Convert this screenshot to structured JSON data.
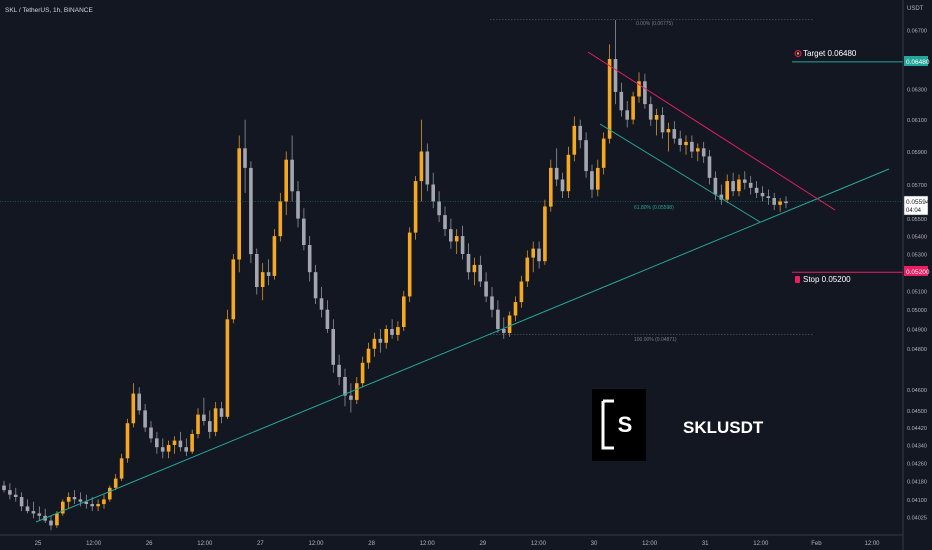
{
  "header": {
    "symbol_label": "SKL / TetherUS, 1h, BINANCE",
    "currency": "USDT"
  },
  "colors": {
    "background": "#131722",
    "bull": "#f7a823",
    "bear": "#a3a6af",
    "trendline": "#26a69a",
    "resistance": "#e91e63",
    "target": "#26a69a",
    "stop": "#e91e63",
    "axis_text": "#b2b5be",
    "axis_border": "#363a45"
  },
  "fib": {
    "top_label": "0.00% (0.06775)",
    "mid_label": "61.80% (0.05598)",
    "bottom_label": "100.00% (0.04871)",
    "top_price": 0.06775,
    "mid_price": 0.05598,
    "bottom_price": 0.04871
  },
  "target": {
    "label": "Target 0.06480",
    "price_tag": "0.06480",
    "price": 0.0648,
    "icon": "target-icon"
  },
  "stop": {
    "label": "Stop 0.05200",
    "price_tag": "0.05200",
    "price": 0.052,
    "icon": "stop-icon"
  },
  "current_price": {
    "price_tag": "0.05594",
    "countdown": "04:04",
    "price": 0.05594
  },
  "watermark": {
    "logo_letter": "S",
    "title": "SKLUSDT"
  },
  "chart_data": {
    "type": "candlestick",
    "y_axis": {
      "ticks": [
        "0.06700",
        "0.06500",
        "0.06300",
        "0.06100",
        "0.05900",
        "0.05700",
        "0.05500",
        "0.05400",
        "0.05300",
        "0.05100",
        "0.05000",
        "0.04900",
        "0.04800",
        "0.04600",
        "0.04500",
        "0.04420",
        "0.04340",
        "0.04260",
        "0.04180",
        "0.04100",
        "0.04025"
      ],
      "tick_values": [
        0.067,
        0.065,
        0.063,
        0.061,
        0.059,
        0.057,
        0.055,
        0.054,
        0.053,
        0.051,
        0.05,
        0.049,
        0.048,
        0.046,
        0.045,
        0.0442,
        0.0434,
        0.0426,
        0.0418,
        0.041,
        0.04025
      ],
      "scale": "log"
    },
    "x_axis": {
      "ticks": [
        "25",
        "12:00",
        "26",
        "12:00",
        "27",
        "12:00",
        "28",
        "12:00",
        "29",
        "12:00",
        "30",
        "12:00",
        "31",
        "12:00",
        "Feb",
        "12:00"
      ]
    },
    "ohlc": [
      [
        0.0416,
        0.0418,
        0.0413,
        0.0414
      ],
      [
        0.0414,
        0.0417,
        0.041,
        0.0412
      ],
      [
        0.0412,
        0.0415,
        0.0409,
        0.0411
      ],
      [
        0.0411,
        0.0413,
        0.0405,
        0.0407
      ],
      [
        0.0407,
        0.041,
        0.0404,
        0.0405
      ],
      [
        0.0405,
        0.0409,
        0.0402,
        0.0404
      ],
      [
        0.0404,
        0.0407,
        0.0401,
        0.0403
      ],
      [
        0.0403,
        0.0406,
        0.04,
        0.0401
      ],
      [
        0.0401,
        0.0403,
        0.0397,
        0.0399
      ],
      [
        0.0399,
        0.0405,
        0.0398,
        0.0404
      ],
      [
        0.0404,
        0.041,
        0.0403,
        0.0409
      ],
      [
        0.0409,
        0.0413,
        0.0406,
        0.0411
      ],
      [
        0.0411,
        0.0414,
        0.0408,
        0.041
      ],
      [
        0.041,
        0.0413,
        0.0407,
        0.0409
      ],
      [
        0.0409,
        0.0412,
        0.0406,
        0.0408
      ],
      [
        0.0408,
        0.0411,
        0.0405,
        0.0407
      ],
      [
        0.0407,
        0.041,
        0.0405,
        0.0408
      ],
      [
        0.0408,
        0.0412,
        0.0406,
        0.041
      ],
      [
        0.041,
        0.0416,
        0.0409,
        0.0415
      ],
      [
        0.0415,
        0.0421,
        0.0414,
        0.0419
      ],
      [
        0.0419,
        0.043,
        0.0418,
        0.0428
      ],
      [
        0.0428,
        0.0446,
        0.0426,
        0.0444
      ],
      [
        0.0444,
        0.0463,
        0.0442,
        0.0458
      ],
      [
        0.0458,
        0.0461,
        0.0448,
        0.045
      ],
      [
        0.045,
        0.0453,
        0.044,
        0.0442
      ],
      [
        0.0442,
        0.0445,
        0.0435,
        0.0437
      ],
      [
        0.0437,
        0.044,
        0.043,
        0.0433
      ],
      [
        0.0433,
        0.0437,
        0.0428,
        0.0431
      ],
      [
        0.0431,
        0.0436,
        0.0428,
        0.0434
      ],
      [
        0.0434,
        0.0438,
        0.043,
        0.0436
      ],
      [
        0.0436,
        0.044,
        0.0431,
        0.0433
      ],
      [
        0.0433,
        0.0437,
        0.0429,
        0.0431
      ],
      [
        0.0431,
        0.0441,
        0.043,
        0.0439
      ],
      [
        0.0439,
        0.0451,
        0.0437,
        0.0448
      ],
      [
        0.0448,
        0.0456,
        0.0443,
        0.0445
      ],
      [
        0.0445,
        0.045,
        0.0437,
        0.044
      ],
      [
        0.044,
        0.0454,
        0.0438,
        0.0451
      ],
      [
        0.0451,
        0.0454,
        0.0444,
        0.0447
      ],
      [
        0.0447,
        0.05,
        0.0446,
        0.0495
      ],
      [
        0.0495,
        0.053,
        0.0493,
        0.0527
      ],
      [
        0.0527,
        0.06,
        0.052,
        0.0592
      ],
      [
        0.0592,
        0.061,
        0.0565,
        0.058
      ],
      [
        0.058,
        0.0584,
        0.0525,
        0.053
      ],
      [
        0.053,
        0.0533,
        0.0508,
        0.0512
      ],
      [
        0.0512,
        0.0525,
        0.0505,
        0.052
      ],
      [
        0.052,
        0.0527,
        0.0513,
        0.0518
      ],
      [
        0.0518,
        0.0544,
        0.0516,
        0.054
      ],
      [
        0.054,
        0.0565,
        0.0537,
        0.056
      ],
      [
        0.056,
        0.059,
        0.0552,
        0.0585
      ],
      [
        0.0585,
        0.06,
        0.056,
        0.0566
      ],
      [
        0.0566,
        0.0572,
        0.0545,
        0.055
      ],
      [
        0.055,
        0.0556,
        0.0532,
        0.0535
      ],
      [
        0.0535,
        0.054,
        0.0515,
        0.052
      ],
      [
        0.052,
        0.0524,
        0.0503,
        0.0506
      ],
      [
        0.0506,
        0.0512,
        0.0496,
        0.05
      ],
      [
        0.05,
        0.0505,
        0.0488,
        0.049
      ],
      [
        0.049,
        0.0495,
        0.0468,
        0.0472
      ],
      [
        0.0472,
        0.0477,
        0.0462,
        0.0466
      ],
      [
        0.0466,
        0.047,
        0.0452,
        0.0457
      ],
      [
        0.0457,
        0.0463,
        0.0449,
        0.0455
      ],
      [
        0.0455,
        0.0466,
        0.0453,
        0.0463
      ],
      [
        0.0463,
        0.0476,
        0.0461,
        0.0473
      ],
      [
        0.0473,
        0.0483,
        0.047,
        0.048
      ],
      [
        0.048,
        0.0488,
        0.0476,
        0.0485
      ],
      [
        0.0485,
        0.049,
        0.0478,
        0.0483
      ],
      [
        0.0483,
        0.0492,
        0.048,
        0.049
      ],
      [
        0.049,
        0.0495,
        0.0485,
        0.0487
      ],
      [
        0.0487,
        0.0494,
        0.0484,
        0.0491
      ],
      [
        0.0491,
        0.051,
        0.0489,
        0.0507
      ],
      [
        0.0507,
        0.0545,
        0.0504,
        0.0542
      ],
      [
        0.0542,
        0.0575,
        0.0538,
        0.0572
      ],
      [
        0.0572,
        0.061,
        0.056,
        0.059
      ],
      [
        0.059,
        0.0595,
        0.0566,
        0.057
      ],
      [
        0.057,
        0.0577,
        0.0556,
        0.056
      ],
      [
        0.056,
        0.0566,
        0.0548,
        0.0552
      ],
      [
        0.0552,
        0.0557,
        0.054,
        0.0544
      ],
      [
        0.0544,
        0.055,
        0.0533,
        0.0537
      ],
      [
        0.0537,
        0.0544,
        0.053,
        0.054
      ],
      [
        0.054,
        0.0546,
        0.0527,
        0.053
      ],
      [
        0.053,
        0.0536,
        0.0516,
        0.052
      ],
      [
        0.052,
        0.0528,
        0.0513,
        0.0524
      ],
      [
        0.0524,
        0.0529,
        0.0512,
        0.0515
      ],
      [
        0.0515,
        0.052,
        0.0504,
        0.0507
      ],
      [
        0.0507,
        0.0512,
        0.0496,
        0.05
      ],
      [
        0.05,
        0.0505,
        0.0488,
        0.049
      ],
      [
        0.049,
        0.0496,
        0.0485,
        0.0488
      ],
      [
        0.0488,
        0.0499,
        0.0486,
        0.0497
      ],
      [
        0.0497,
        0.0507,
        0.0494,
        0.0504
      ],
      [
        0.0504,
        0.0518,
        0.0501,
        0.0515
      ],
      [
        0.0515,
        0.0532,
        0.0512,
        0.0528
      ],
      [
        0.0528,
        0.0537,
        0.052,
        0.0533
      ],
      [
        0.0533,
        0.0537,
        0.0522,
        0.0526
      ],
      [
        0.0526,
        0.0561,
        0.0524,
        0.0557
      ],
      [
        0.0557,
        0.0585,
        0.0554,
        0.058
      ],
      [
        0.058,
        0.0592,
        0.0569,
        0.0573
      ],
      [
        0.0573,
        0.0577,
        0.0562,
        0.0566
      ],
      [
        0.0566,
        0.0593,
        0.0562,
        0.0588
      ],
      [
        0.0588,
        0.0612,
        0.0584,
        0.0606
      ],
      [
        0.0606,
        0.061,
        0.0592,
        0.0597
      ],
      [
        0.0597,
        0.0602,
        0.0574,
        0.0578
      ],
      [
        0.0578,
        0.0582,
        0.0562,
        0.0567
      ],
      [
        0.0567,
        0.0585,
        0.0563,
        0.058
      ],
      [
        0.058,
        0.0602,
        0.0576,
        0.0598
      ],
      [
        0.0598,
        0.066,
        0.0595,
        0.065
      ],
      [
        0.065,
        0.0677,
        0.062,
        0.0628
      ],
      [
        0.0628,
        0.0634,
        0.0612,
        0.0616
      ],
      [
        0.0616,
        0.0622,
        0.0605,
        0.061
      ],
      [
        0.061,
        0.0628,
        0.0607,
        0.0625
      ],
      [
        0.0625,
        0.0641,
        0.0621,
        0.0635
      ],
      [
        0.0635,
        0.064,
        0.0617,
        0.062
      ],
      [
        0.062,
        0.0625,
        0.0606,
        0.061
      ],
      [
        0.061,
        0.0617,
        0.06,
        0.0613
      ],
      [
        0.0613,
        0.0618,
        0.0598,
        0.0602
      ],
      [
        0.0602,
        0.0608,
        0.059,
        0.0604
      ],
      [
        0.0604,
        0.0609,
        0.0595,
        0.0598
      ],
      [
        0.0598,
        0.0603,
        0.059,
        0.0594
      ],
      [
        0.0594,
        0.06,
        0.0588,
        0.0596
      ],
      [
        0.0596,
        0.06,
        0.0586,
        0.059
      ],
      [
        0.059,
        0.0595,
        0.0584,
        0.0592
      ],
      [
        0.0592,
        0.0596,
        0.0583,
        0.0587
      ],
      [
        0.0587,
        0.0591,
        0.057,
        0.0574
      ],
      [
        0.0574,
        0.0578,
        0.0561,
        0.0564
      ],
      [
        0.0564,
        0.057,
        0.0558,
        0.0561
      ],
      [
        0.0561,
        0.0576,
        0.0559,
        0.0572
      ],
      [
        0.0572,
        0.0577,
        0.0563,
        0.0566
      ],
      [
        0.0566,
        0.0576,
        0.0563,
        0.0573
      ],
      [
        0.0573,
        0.0578,
        0.0567,
        0.0571
      ],
      [
        0.0571,
        0.0575,
        0.0564,
        0.0568
      ],
      [
        0.0568,
        0.0572,
        0.0562,
        0.0565
      ],
      [
        0.0565,
        0.0569,
        0.056,
        0.0563
      ],
      [
        0.0563,
        0.0567,
        0.0558,
        0.0562
      ],
      [
        0.0562,
        0.0565,
        0.0555,
        0.0558
      ],
      [
        0.0558,
        0.0562,
        0.0554,
        0.056
      ],
      [
        0.056,
        0.0563,
        0.0556,
        0.0559
      ]
    ]
  }
}
